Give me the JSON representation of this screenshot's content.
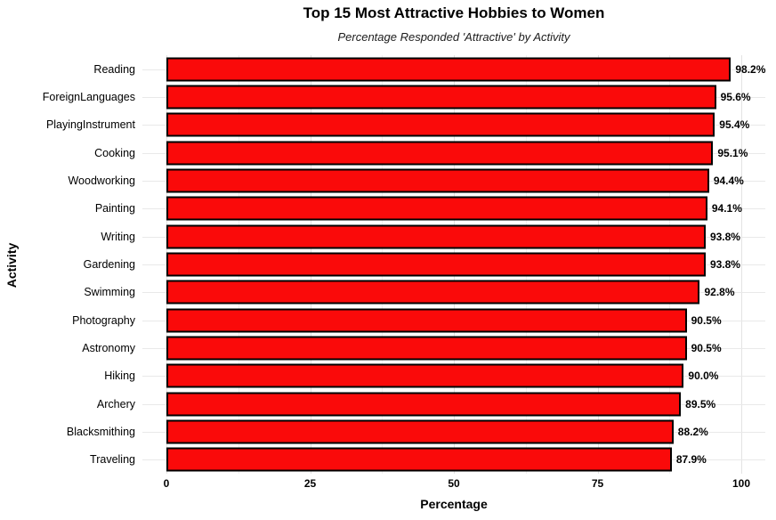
{
  "chart_data": {
    "type": "bar",
    "orientation": "horizontal",
    "title": "Top 15 Most Attractive Hobbies to Women",
    "subtitle": "Percentage Responded 'Attractive' by Activity",
    "xlabel": "Percentage",
    "ylabel": "Activity",
    "xlim": [
      0,
      100
    ],
    "x_ticks": [
      0,
      25,
      50,
      75,
      100
    ],
    "grid": "major and minor vertical gridlines, horizontal line per category",
    "legend": "none",
    "bar_fill": "#fa0a0a",
    "bar_stroke": "#000000",
    "categories": [
      "Reading",
      "ForeignLanguages",
      "PlayingInstrument",
      "Cooking",
      "Woodworking",
      "Painting",
      "Writing",
      "Gardening",
      "Swimming",
      "Photography",
      "Astronomy",
      "Hiking",
      "Archery",
      "Blacksmithing",
      "Traveling"
    ],
    "values": [
      98.2,
      95.6,
      95.4,
      95.1,
      94.4,
      94.1,
      93.8,
      93.8,
      92.8,
      90.5,
      90.5,
      90.0,
      89.5,
      88.2,
      87.9
    ],
    "value_labels": [
      "98.2%",
      "95.6%",
      "95.4%",
      "95.1%",
      "94.4%",
      "94.1%",
      "93.8%",
      "93.8%",
      "92.8%",
      "90.5%",
      "90.5%",
      "90.0%",
      "89.5%",
      "88.2%",
      "87.9%"
    ]
  }
}
